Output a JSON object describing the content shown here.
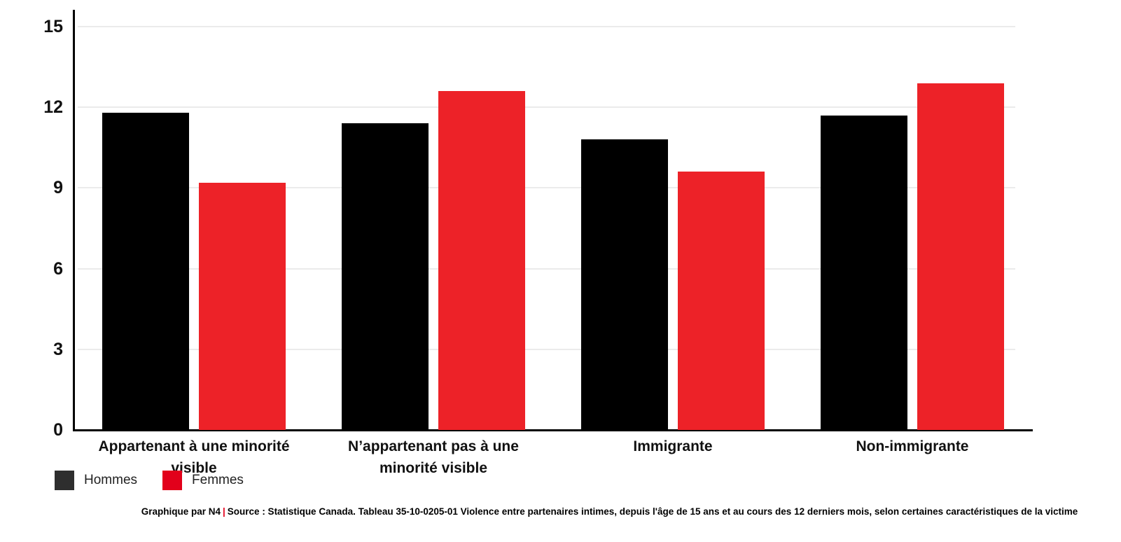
{
  "chart_data": {
    "type": "bar",
    "title": "",
    "xlabel": "",
    "ylabel": "",
    "categories": [
      "Appartenant à une minorité visible",
      "N’appartenant pas à une minorité visible",
      "Immigrante",
      "Non-immigrante"
    ],
    "series": [
      {
        "name": "Hommes",
        "color": "#000000",
        "legend_color": "#2e2e2e",
        "values": [
          11.8,
          11.4,
          10.8,
          11.7
        ]
      },
      {
        "name": "Femmes",
        "color": "#ed2228",
        "legend_color": "#e2001b",
        "values": [
          9.2,
          12.6,
          9.6,
          12.9
        ]
      }
    ],
    "ylim": [
      0,
      15
    ],
    "yticks": [
      0,
      3,
      6,
      9,
      12,
      15
    ],
    "grid": true,
    "gridline_color": "#ebebeb",
    "legend_position": "bottom-left"
  },
  "footer": {
    "credit": "Graphique par N4",
    "separator": "|",
    "separator_color": "#e3001b",
    "source": "Source : Statistique Canada. Tableau 35-10-0205-01 Violence entre partenaires intimes, depuis l'âge de 15 ans et au cours des 12 derniers mois, selon certaines caractéristiques de la victime"
  }
}
